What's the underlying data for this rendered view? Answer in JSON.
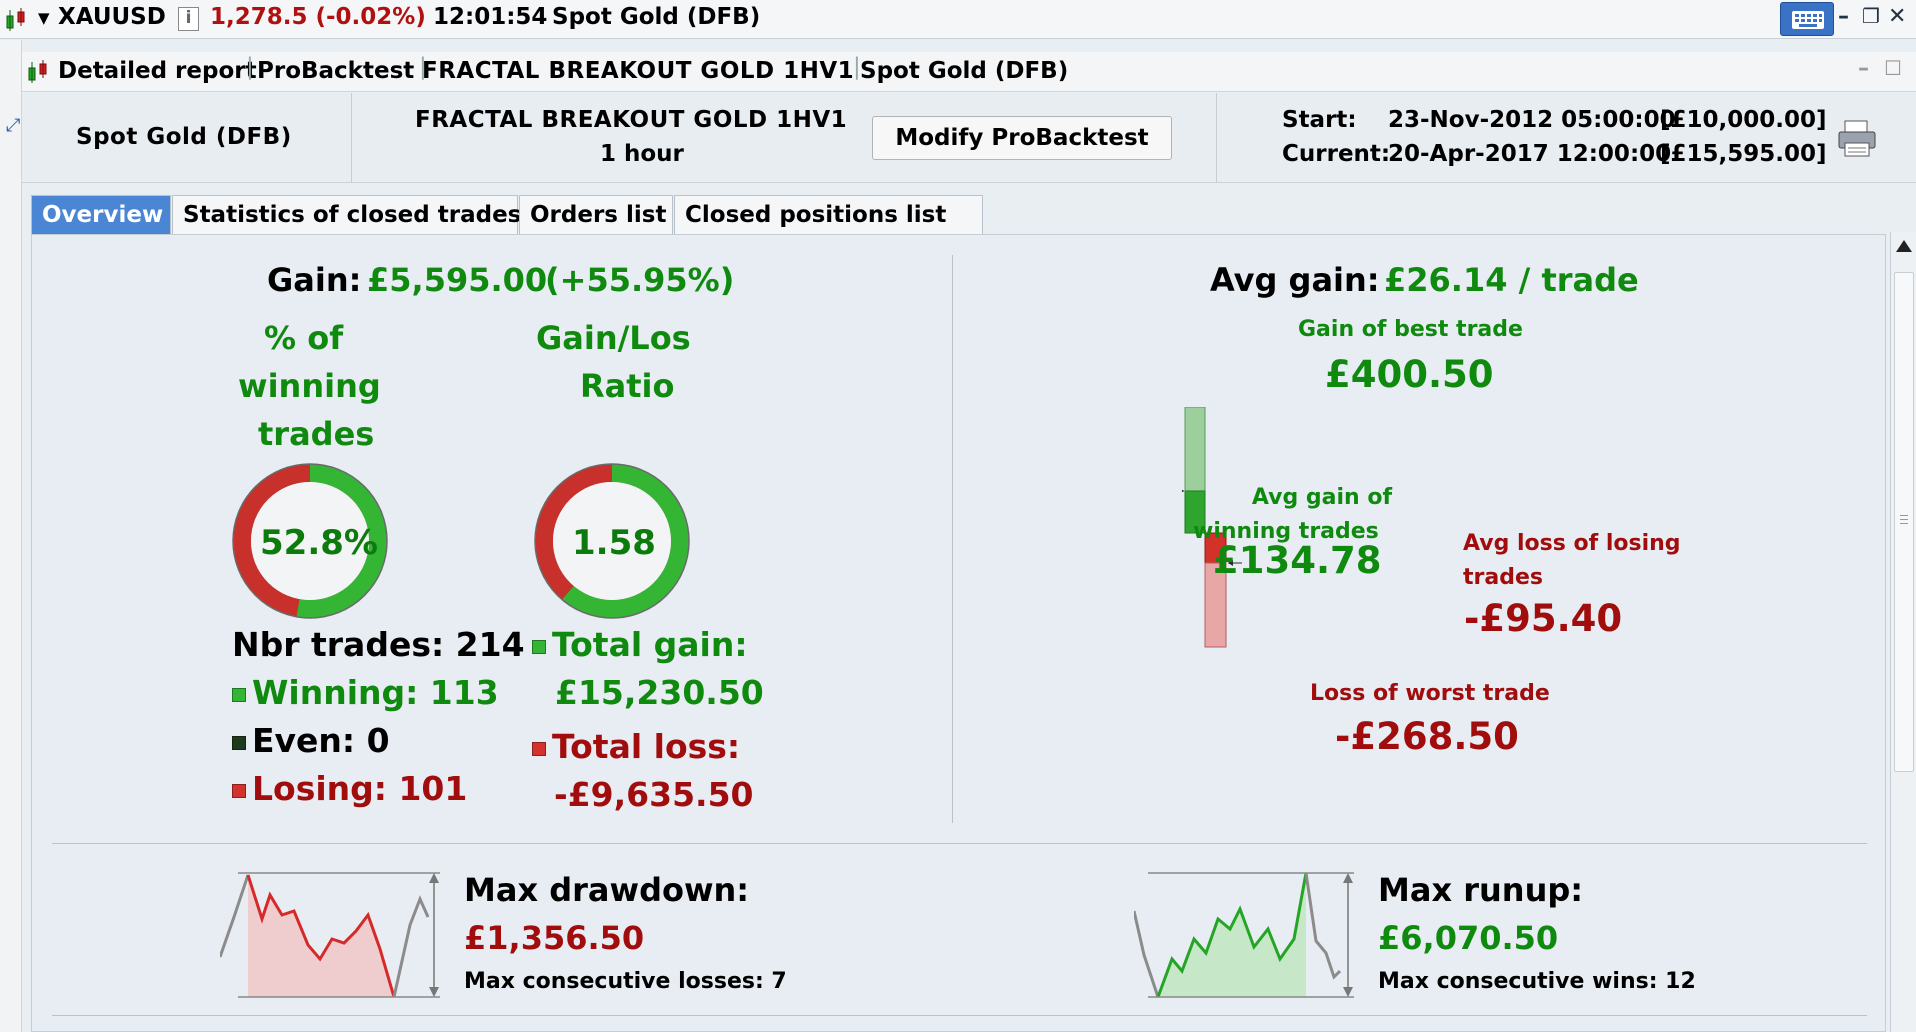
{
  "topbar": {
    "symbol": "XAUUSD",
    "info_icon": "i",
    "price": "1,278.5 (-0.02%)",
    "time": "12:01:54",
    "instrument": "Spot Gold (DFB)"
  },
  "window": {
    "tabs_text": [
      "Detailed report",
      "ProBacktest",
      "FRACTAL BREAKOUT GOLD 1HV1",
      "Spot Gold (DFB)"
    ]
  },
  "infobar": {
    "instrument": "Spot Gold (DFB)",
    "strategy": "FRACTAL BREAKOUT GOLD 1HV1",
    "timeframe": "1 hour",
    "modify_label": "Modify ProBacktest",
    "start_label": "Start:",
    "start_value": "23-Nov-2012 05:00:00",
    "start_capital": "[£10,000.00]",
    "current_label": "Current:",
    "current_value": "20-Apr-2017 12:00:00",
    "current_capital": "[£15,595.00]"
  },
  "tabs": [
    {
      "label": "Overview",
      "active": true
    },
    {
      "label": "Statistics of closed trades",
      "active": false
    },
    {
      "label": "Orders list",
      "active": false
    },
    {
      "label": "Closed positions list",
      "active": false
    }
  ],
  "overview": {
    "gain_label": "Gain:",
    "gain_value": "£5,595.00",
    "gain_pct": "(+55.95%)",
    "winning_pct_title": [
      "% of",
      "winning",
      "trades"
    ],
    "winning_pct_value": "52.8%",
    "winning_pct": 0.528,
    "gainloss_title": [
      "Gain/Los",
      "Ratio"
    ],
    "gainloss_value": "1.58",
    "gainloss_fraction": 0.612,
    "nbr_trades": "Nbr trades: 214",
    "winning": "Winning: 113",
    "even": "Even: 0",
    "losing": "Losing: 101",
    "total_gain_label": "Total gain:",
    "total_gain_value": "£15,230.50",
    "total_loss_label": "Total loss:",
    "total_loss_value": "-£9,635.50",
    "avg_gain_label": "Avg gain:",
    "avg_gain_value": "£26.14 / trade",
    "best_trade_label": "Gain of best trade",
    "best_trade_value": "£400.50",
    "avg_win_label": [
      "Avg gain of",
      "winning trades"
    ],
    "avg_win_value": "£134.78",
    "avg_loss_label": [
      "Avg loss of losing",
      "trades"
    ],
    "avg_loss_value": "-£95.40",
    "worst_trade_label": "Loss of worst trade",
    "worst_trade_value": "-£268.50",
    "drawdown_label": "Max drawdown:",
    "drawdown_value": "£1,356.50",
    "consec_losses": "Max consecutive losses: 7",
    "runup_label": "Max runup:",
    "runup_value": "£6,070.50",
    "consec_wins": "Max consecutive wins: 12"
  },
  "colors": {
    "gain_green": "#0f8a0f",
    "loss_red": "#a10d0d",
    "tab_active": "#4a86d4"
  }
}
